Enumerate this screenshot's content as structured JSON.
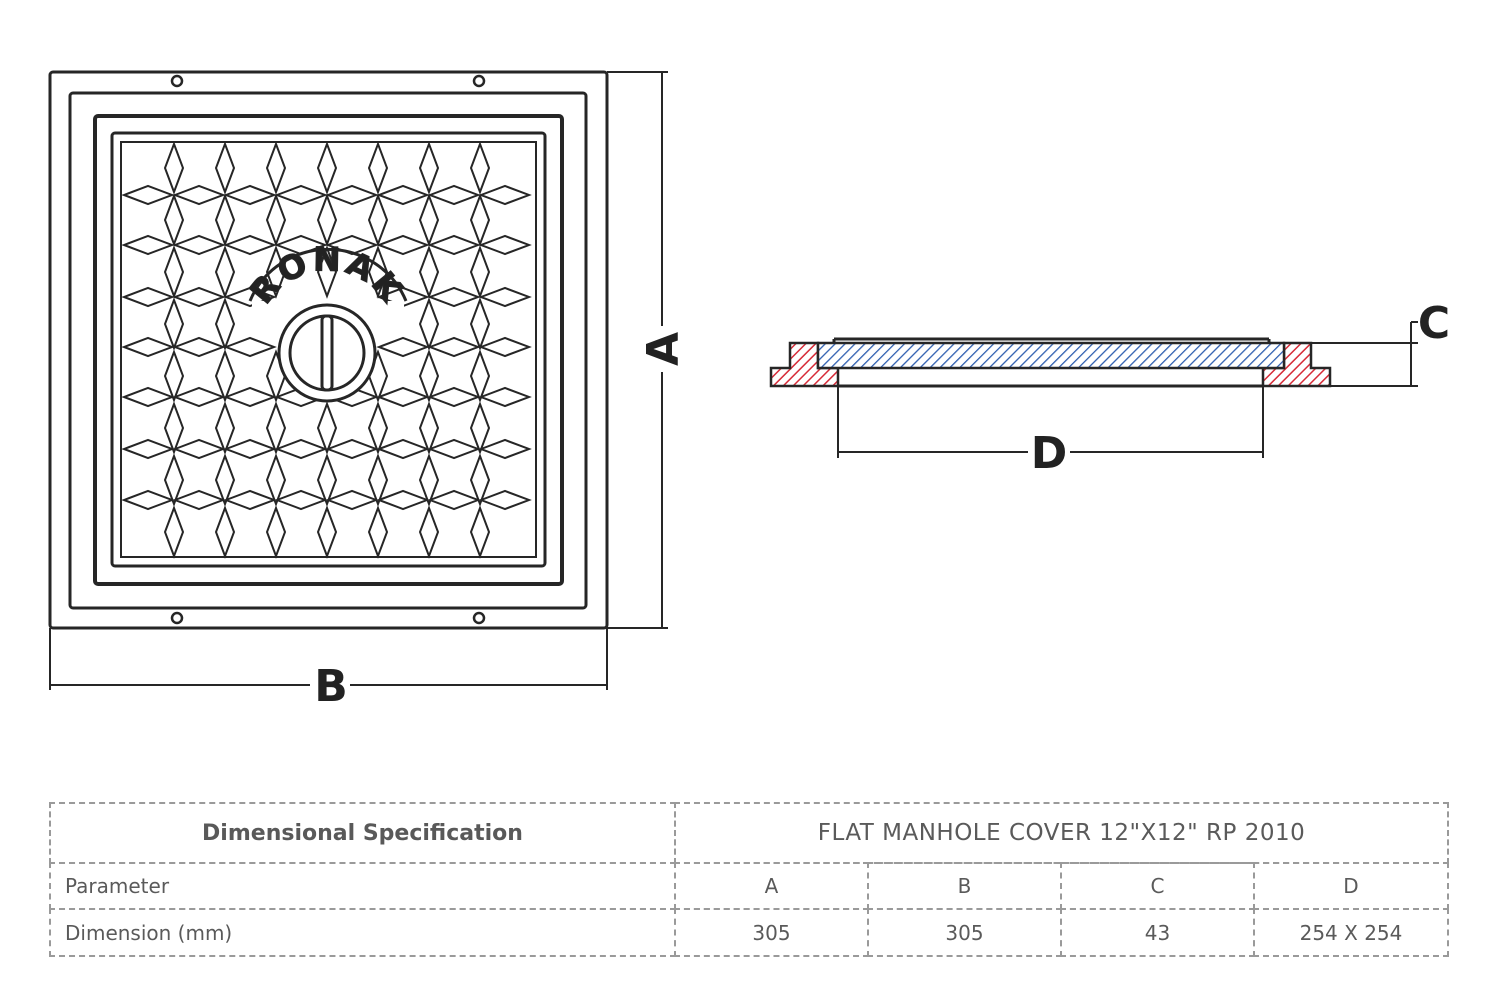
{
  "drawing": {
    "brand_text": "RONAK",
    "labels": {
      "a": "A",
      "b": "B",
      "c": "C",
      "d": "D"
    }
  },
  "spec_table": {
    "heading": "Dimensional Specification",
    "product": "FLAT MANHOLE COVER 12\"X12\" RP 2010",
    "row_parameter": {
      "label": "Parameter",
      "values": [
        "A",
        "B",
        "C",
        "D"
      ]
    },
    "row_dimension": {
      "label": "Dimension (mm)",
      "values": [
        "305",
        "305",
        "43",
        "254 X 254"
      ]
    }
  },
  "colors": {
    "line": "#262626",
    "frame_section": "#d62b38",
    "cover_section": "#2f5fb0",
    "table_border": "#9a9a9a",
    "table_text": "#5a5a5a"
  }
}
